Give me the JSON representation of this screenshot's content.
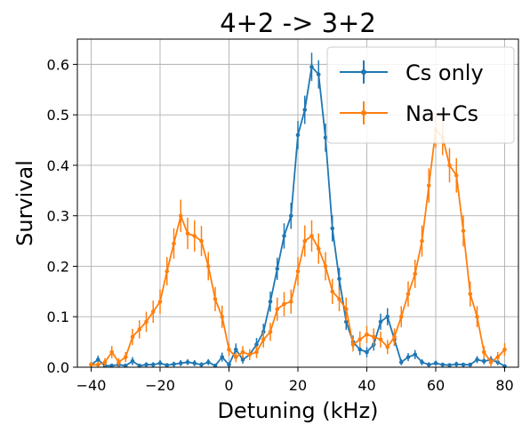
{
  "chart_data": {
    "type": "line",
    "title": "4+2 -> 3+2",
    "xlabel": "Detuning (kHz)",
    "ylabel": "Survival",
    "xlim": [
      -44,
      84
    ],
    "ylim": [
      0,
      0.65
    ],
    "xticks": [
      -40,
      -20,
      0,
      20,
      40,
      60,
      80
    ],
    "yticks": [
      0.0,
      0.1,
      0.2,
      0.3,
      0.4,
      0.5,
      0.6
    ],
    "xtick_labels": [
      "−40",
      "−20",
      "0",
      "20",
      "40",
      "60",
      "80"
    ],
    "ytick_labels": [
      "0.0",
      "0.1",
      "0.2",
      "0.3",
      "0.4",
      "0.5",
      "0.6"
    ],
    "grid": true,
    "legend_position": "top-right",
    "error_bars": true,
    "series": [
      {
        "name": "Cs only",
        "color": "#1f77b4",
        "x": [
          -40,
          -38,
          -36,
          -34,
          -32,
          -30,
          -28,
          -26,
          -24,
          -22,
          -20,
          -18,
          -16,
          -14,
          -12,
          -10,
          -8,
          -6,
          -4,
          -2,
          0,
          2,
          4,
          6,
          8,
          10,
          12,
          14,
          16,
          18,
          20,
          22,
          24,
          26,
          28,
          30,
          32,
          34,
          36,
          38,
          40,
          42,
          44,
          46,
          48,
          50,
          52,
          54,
          56,
          58,
          60,
          62,
          64,
          66,
          68,
          70,
          72,
          74,
          76,
          78,
          80
        ],
        "y": [
          0.005,
          0.015,
          0.003,
          0.003,
          0.005,
          0.003,
          0.012,
          0.003,
          0.005,
          0.005,
          0.008,
          0.004,
          0.006,
          0.008,
          0.01,
          0.008,
          0.005,
          0.01,
          0.003,
          0.02,
          0.005,
          0.035,
          0.015,
          0.025,
          0.045,
          0.07,
          0.13,
          0.195,
          0.26,
          0.3,
          0.46,
          0.51,
          0.595,
          0.58,
          0.455,
          0.275,
          0.175,
          0.09,
          0.05,
          0.035,
          0.03,
          0.045,
          0.09,
          0.1,
          0.055,
          0.01,
          0.02,
          0.025,
          0.01,
          0.005,
          0.008,
          0.005,
          0.004,
          0.006,
          0.005,
          0.005,
          0.015,
          0.012,
          0.015,
          0.01,
          0.002
        ],
        "err": [
          0.005,
          0.008,
          0.004,
          0.004,
          0.005,
          0.004,
          0.008,
          0.004,
          0.005,
          0.005,
          0.006,
          0.004,
          0.005,
          0.006,
          0.006,
          0.006,
          0.005,
          0.006,
          0.004,
          0.009,
          0.005,
          0.012,
          0.008,
          0.01,
          0.013,
          0.016,
          0.02,
          0.022,
          0.025,
          0.026,
          0.028,
          0.028,
          0.028,
          0.028,
          0.028,
          0.026,
          0.022,
          0.016,
          0.013,
          0.011,
          0.01,
          0.012,
          0.016,
          0.017,
          0.013,
          0.006,
          0.008,
          0.009,
          0.006,
          0.005,
          0.005,
          0.004,
          0.004,
          0.005,
          0.004,
          0.004,
          0.007,
          0.006,
          0.007,
          0.006,
          0.003
        ]
      },
      {
        "name": "Na+Cs",
        "color": "#ff7f0e",
        "x": [
          -40,
          -38,
          -36,
          -34,
          -32,
          -30,
          -28,
          -26,
          -24,
          -22,
          -20,
          -18,
          -16,
          -14,
          -12,
          -10,
          -8,
          -6,
          -4,
          -2,
          0,
          2,
          4,
          6,
          8,
          10,
          12,
          14,
          16,
          18,
          20,
          22,
          24,
          26,
          28,
          30,
          32,
          34,
          36,
          38,
          40,
          42,
          44,
          46,
          48,
          50,
          52,
          54,
          56,
          58,
          60,
          62,
          64,
          66,
          68,
          70,
          72,
          74,
          76,
          78,
          80
        ],
        "y": [
          0.005,
          0.005,
          0.01,
          0.03,
          0.01,
          0.02,
          0.06,
          0.075,
          0.09,
          0.11,
          0.13,
          0.19,
          0.245,
          0.3,
          0.265,
          0.26,
          0.25,
          0.2,
          0.135,
          0.1,
          0.035,
          0.02,
          0.03,
          0.025,
          0.03,
          0.055,
          0.07,
          0.115,
          0.125,
          0.13,
          0.19,
          0.25,
          0.26,
          0.235,
          0.2,
          0.15,
          0.135,
          0.115,
          0.045,
          0.055,
          0.065,
          0.06,
          0.055,
          0.04,
          0.06,
          0.1,
          0.145,
          0.185,
          0.25,
          0.36,
          0.47,
          0.455,
          0.4,
          0.38,
          0.27,
          0.145,
          0.1,
          0.03,
          0.01,
          0.02,
          0.035
        ],
        "err": [
          0.006,
          0.006,
          0.008,
          0.012,
          0.008,
          0.01,
          0.016,
          0.018,
          0.02,
          0.022,
          0.024,
          0.028,
          0.03,
          0.032,
          0.031,
          0.031,
          0.03,
          0.028,
          0.024,
          0.022,
          0.012,
          0.01,
          0.012,
          0.011,
          0.012,
          0.016,
          0.018,
          0.023,
          0.024,
          0.024,
          0.028,
          0.031,
          0.031,
          0.03,
          0.028,
          0.025,
          0.024,
          0.023,
          0.014,
          0.016,
          0.017,
          0.017,
          0.016,
          0.014,
          0.017,
          0.021,
          0.025,
          0.028,
          0.031,
          0.034,
          0.035,
          0.035,
          0.034,
          0.034,
          0.031,
          0.025,
          0.021,
          0.012,
          0.008,
          0.01,
          0.013
        ]
      }
    ]
  }
}
